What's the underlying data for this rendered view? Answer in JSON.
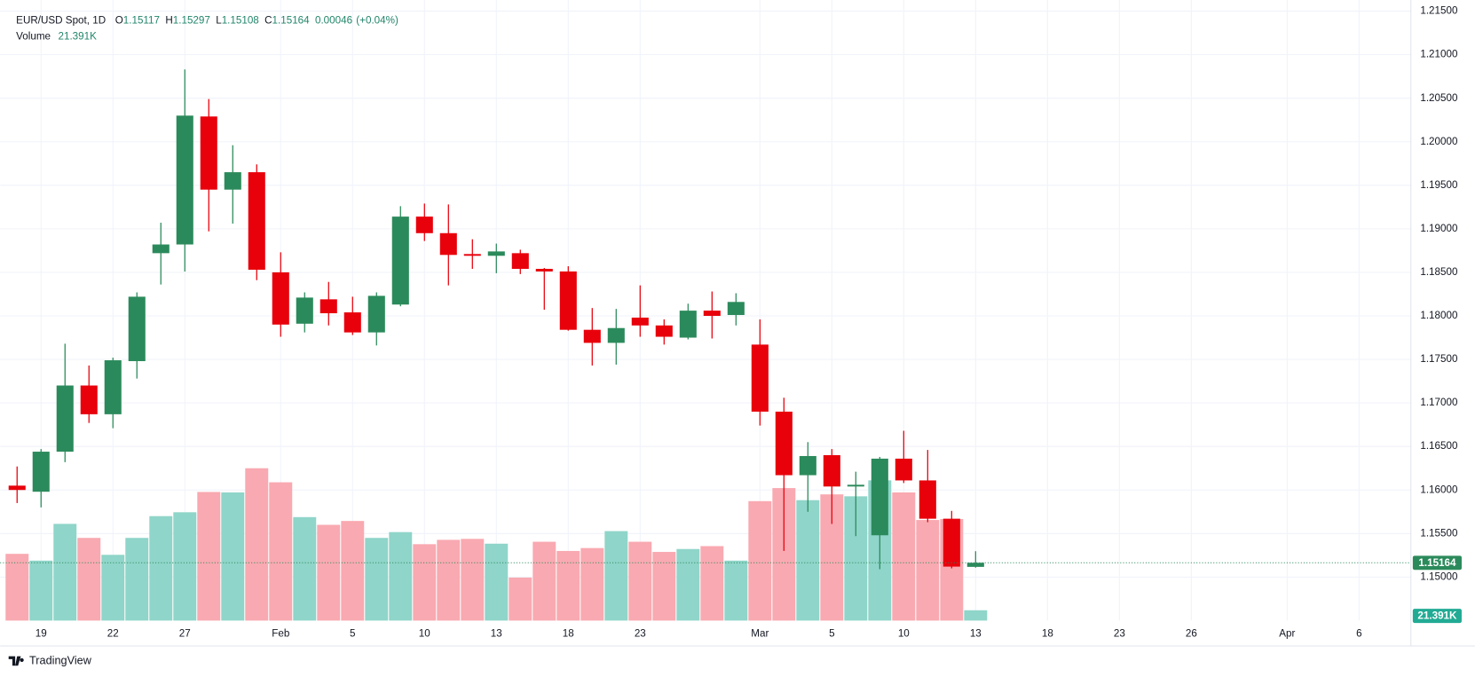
{
  "chart_data": {
    "type": "candlestick",
    "title": "EUR/USD Spot, 1D",
    "header": {
      "labels": [
        "O",
        "H",
        "L",
        "C"
      ],
      "change": "0.00046",
      "change_pct": "(+0.04%)",
      "volume_title": "Volume"
    },
    "categories": [
      null,
      "19",
      null,
      null,
      "22",
      null,
      null,
      "27",
      null,
      null,
      null,
      "Feb",
      null,
      null,
      "5",
      null,
      null,
      "10",
      null,
      null,
      "13",
      null,
      null,
      "18",
      null,
      null,
      "23",
      null,
      null,
      null,
      null,
      "Mar",
      null,
      null,
      "5",
      null,
      null,
      "10",
      null,
      null,
      "13",
      null,
      null,
      "18",
      null,
      null,
      "23",
      null,
      null,
      "26",
      null,
      null,
      null,
      "Apr",
      null,
      null,
      "6",
      null,
      null
    ],
    "open": [
      1.1605,
      1.1598,
      1.1644,
      1.172,
      1.1687,
      1.1748,
      1.1872,
      1.1882,
      1.2029,
      1.1945,
      1.1965,
      1.185,
      1.1791,
      1.1819,
      1.1804,
      1.1781,
      1.1813,
      1.1914,
      1.1895,
      1.1871,
      1.1869,
      1.1872,
      1.1854,
      1.1851,
      1.1784,
      1.1769,
      1.1798,
      1.1789,
      1.1775,
      1.1806,
      1.1801,
      1.1767,
      1.169,
      1.1617,
      1.164,
      1.1604,
      1.1548,
      1.1636,
      1.1611,
      1.1567,
      1.15117,
      null,
      null,
      null,
      null,
      null,
      null,
      null,
      null,
      null,
      null,
      null,
      null,
      null,
      null,
      null,
      null,
      null,
      null
    ],
    "high": [
      1.1627,
      1.1647,
      1.1768,
      1.1743,
      1.1752,
      1.1827,
      1.1907,
      1.2083,
      1.2049,
      1.1996,
      1.1974,
      1.1873,
      1.1827,
      1.1839,
      1.1822,
      1.1827,
      1.1926,
      1.1929,
      1.1928,
      1.1888,
      1.1883,
      1.1876,
      1.1855,
      1.1857,
      1.1809,
      1.1808,
      1.1835,
      1.1796,
      1.1814,
      1.1828,
      1.1826,
      1.1796,
      1.1706,
      1.1655,
      1.1647,
      1.1621,
      1.1638,
      1.1668,
      1.1646,
      1.1576,
      1.15297,
      null,
      null,
      null,
      null,
      null,
      null,
      null,
      null,
      null,
      null,
      null,
      null,
      null,
      null,
      null,
      null,
      null,
      null
    ],
    "low": [
      1.1585,
      1.158,
      1.1632,
      1.1677,
      1.1671,
      1.1728,
      1.1836,
      1.1851,
      1.1897,
      1.1906,
      1.1841,
      1.1776,
      1.1781,
      1.1789,
      1.1778,
      1.1766,
      1.1811,
      1.1886,
      1.1835,
      1.1854,
      1.1849,
      1.1848,
      1.1807,
      1.1783,
      1.1743,
      1.1744,
      1.1776,
      1.1767,
      1.1773,
      1.1774,
      1.1789,
      1.1674,
      1.153,
      1.1575,
      1.1561,
      1.1547,
      1.1509,
      1.1608,
      1.1563,
      1.151,
      1.15108,
      null,
      null,
      null,
      null,
      null,
      null,
      null,
      null,
      null,
      null,
      null,
      null,
      null,
      null,
      null,
      null,
      null,
      null
    ],
    "close": [
      1.16,
      1.1644,
      1.172,
      1.1687,
      1.1749,
      1.1822,
      1.1882,
      1.203,
      1.1945,
      1.1965,
      1.1853,
      1.179,
      1.1821,
      1.1803,
      1.1781,
      1.1823,
      1.1914,
      1.1895,
      1.187,
      1.1869,
      1.1874,
      1.1854,
      1.1851,
      1.1784,
      1.1769,
      1.1786,
      1.1789,
      1.1776,
      1.1806,
      1.18,
      1.1816,
      1.169,
      1.1617,
      1.1639,
      1.1604,
      1.1606,
      1.1636,
      1.1611,
      1.1567,
      1.1512,
      1.15164,
      null,
      null,
      null,
      null,
      null,
      null,
      null,
      null,
      null,
      null,
      null,
      null,
      null,
      null,
      null,
      null,
      null,
      null
    ],
    "volume": {
      "values": [
        138000,
        124000,
        200000,
        171000,
        136000,
        171000,
        216000,
        224000,
        266000,
        265000,
        315000,
        286000,
        214000,
        198000,
        206000,
        171000,
        183000,
        158000,
        167000,
        169000,
        159000,
        89000,
        163000,
        144000,
        150000,
        185000,
        163000,
        142000,
        148000,
        154000,
        124000,
        247000,
        274000,
        249000,
        261000,
        257000,
        290000,
        265000,
        208000,
        210000,
        21391,
        null,
        null,
        null,
        null,
        null,
        null,
        null,
        null,
        null,
        null,
        null,
        null,
        null,
        null,
        null,
        null,
        null,
        null
      ],
      "value_labels": [
        null,
        null,
        null,
        null,
        null,
        null,
        null,
        null,
        null,
        null,
        null,
        null,
        null,
        null,
        null,
        null,
        null,
        null,
        null,
        null,
        null,
        null,
        null,
        null,
        null,
        null,
        null,
        null,
        null,
        null,
        null,
        null,
        null,
        null,
        null,
        null,
        null,
        null,
        null,
        null,
        "21.391K",
        null,
        null,
        null,
        null,
        null,
        null,
        null,
        null,
        null,
        null,
        null,
        null,
        null,
        null,
        null,
        null,
        null,
        null
      ]
    },
    "up_color": "#2b8a5b",
    "down_color": "#e8000b",
    "volume_up_color": "#8fd5c9",
    "volume_down_color": "#f9a9b1",
    "ylim": [
      1.145,
      1.2152
    ],
    "yticks": [
      {
        "value": 1.15,
        "label": "1.15000"
      },
      {
        "value": 1.155,
        "label": "1.15500"
      },
      {
        "value": 1.16,
        "label": "1.16000"
      },
      {
        "value": 1.165,
        "label": "1.16500"
      },
      {
        "value": 1.17,
        "label": "1.17000"
      },
      {
        "value": 1.175,
        "label": "1.17500"
      },
      {
        "value": 1.18,
        "label": "1.18000"
      },
      {
        "value": 1.185,
        "label": "1.18500"
      },
      {
        "value": 1.19,
        "label": "1.19000"
      },
      {
        "value": 1.195,
        "label": "1.19500"
      },
      {
        "value": 1.2,
        "label": "1.20000"
      },
      {
        "value": 1.205,
        "label": "1.20500"
      },
      {
        "value": 1.21,
        "label": "1.21000"
      },
      {
        "value": 1.215,
        "label": "1.21500"
      }
    ],
    "grid": true
  },
  "footer": {
    "brand": "TradingView"
  }
}
